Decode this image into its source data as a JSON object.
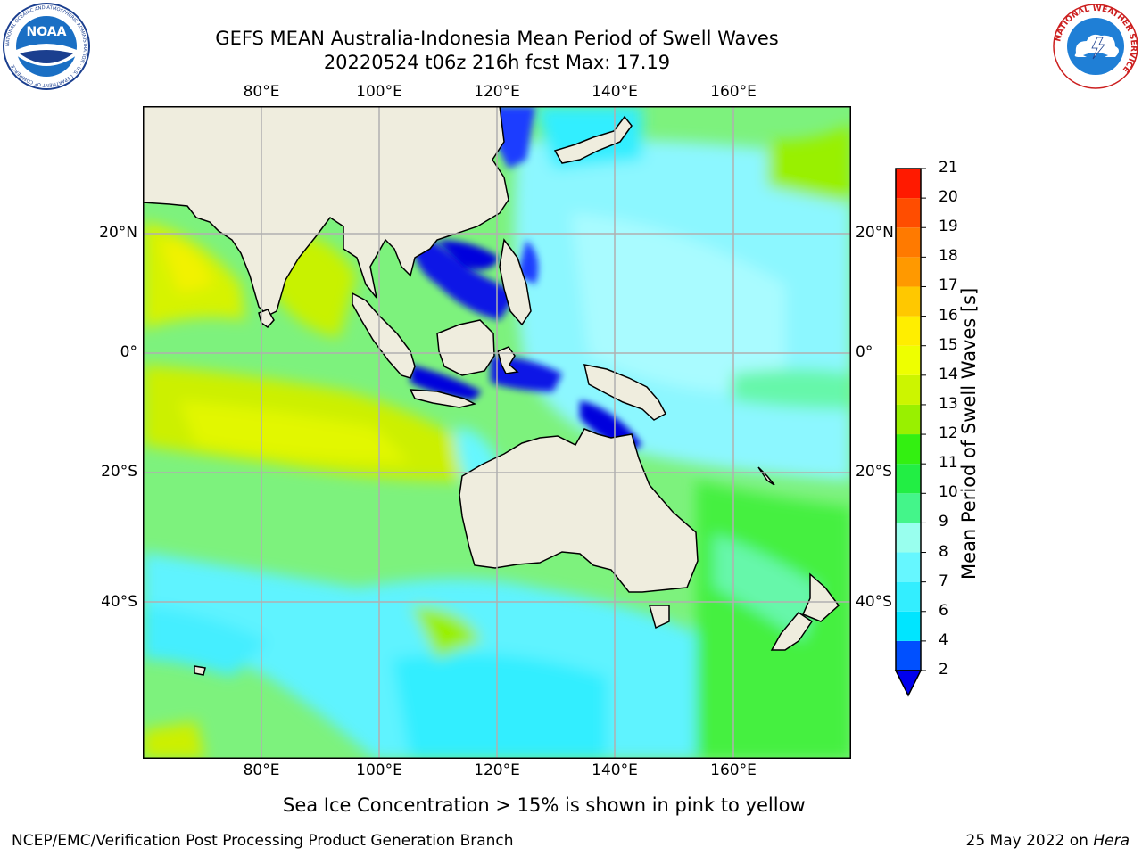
{
  "header": {
    "title_line1": "GEFS MEAN Australia-Indonesia Mean Period of Swell Waves",
    "title_line2": "20220524 t06z 216h fcst   Max: 17.19"
  },
  "logos": {
    "noaa_text": "NOAA",
    "noaa_ring_text": "NATIONAL OCEANIC AND ATMOSPHERIC ADMINISTRATION · U.S. DEPARTMENT OF COMMERCE",
    "nws_ring_text": "NATIONAL WEATHER SERVICE"
  },
  "map": {
    "lon_ticks": [
      "80°E",
      "100°E",
      "120°E",
      "140°E",
      "160°E"
    ],
    "lat_ticks": [
      "20°N",
      "0°",
      "20°S",
      "40°S"
    ],
    "ocean_color": "#7df27d",
    "land_color": "#efedde",
    "grid_color": "#b0b0b0"
  },
  "colorbar": {
    "label": "Mean Period of Swell Waves [s]",
    "levels": [
      "2",
      "4",
      "6",
      "7",
      "8",
      "9",
      "10",
      "11",
      "12",
      "13",
      "14",
      "15",
      "16",
      "17",
      "18",
      "19",
      "20",
      "21"
    ],
    "colors": [
      "#0050ff",
      "#00e5ff",
      "#33eeff",
      "#66f7ff",
      "#99ffee",
      "#44f58a",
      "#22ee44",
      "#33f011",
      "#99f000",
      "#ccf500",
      "#eeff00",
      "#ffee00",
      "#ffc800",
      "#ff9900",
      "#ff7a00",
      "#ff4d00",
      "#ff1a00"
    ],
    "under_color": "#0000ee"
  },
  "caption": "Sea Ice Concentration > 15% is shown in pink to yellow",
  "footer": {
    "left": "NCEP/EMC/Verification Post Processing Product Generation Branch",
    "right_date": "25 May 2022 on ",
    "right_host": "Hera"
  }
}
